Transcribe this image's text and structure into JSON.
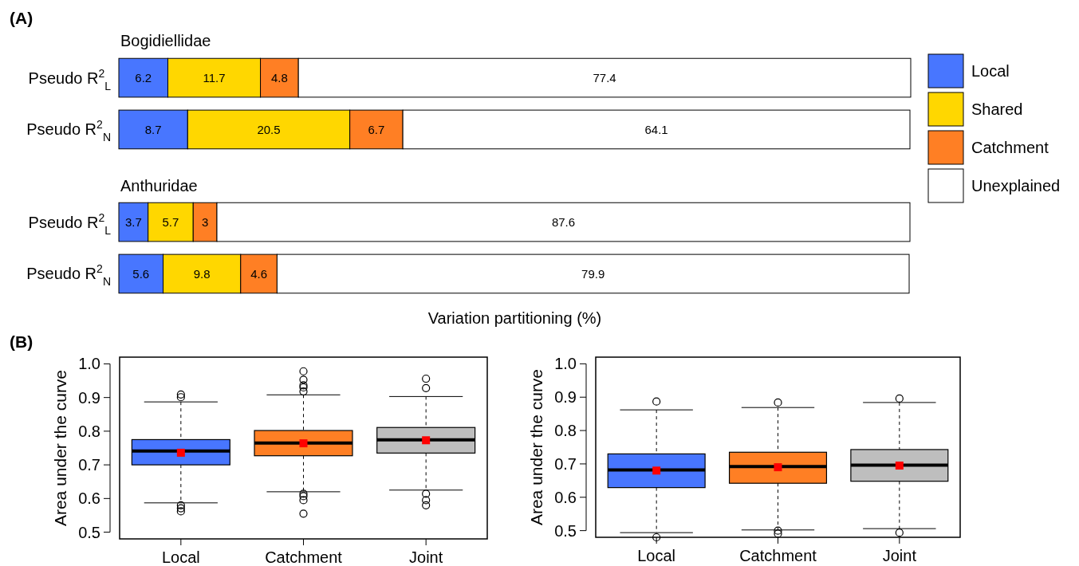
{
  "chart_data": [
    {
      "type": "bar",
      "title": "Bogidiellidae",
      "annotations": [
        "(A)"
      ],
      "orientation": "horizontal",
      "stacked": true,
      "data_labels": true,
      "legend": "right",
      "xlim": [
        0,
        100.1
      ],
      "categories": [
        "Pseudo R$^{2}$$_{L}$",
        "Pseudo R$^{2}$$_{N}$"
      ],
      "series": [
        {
          "name": "Local",
          "color": "#4876ff",
          "values": [
            6.2,
            8.7
          ]
        },
        {
          "name": "Shared",
          "color": "#ffd700",
          "values": [
            11.7,
            20.5
          ]
        },
        {
          "name": "Catchment",
          "color": "#ff7f24",
          "values": [
            4.8,
            6.7
          ]
        },
        {
          "name": "Unexplained",
          "color": "#ffffff",
          "values": [
            77.4,
            64.1
          ]
        }
      ]
    },
    {
      "type": "bar",
      "title": "Anthuridae",
      "xlabel": "Variation partitioning (%)",
      "orientation": "horizontal",
      "stacked": true,
      "data_labels": true,
      "xlim": [
        0,
        100.1
      ],
      "categories": [
        "Pseudo R$^{2}$$_{L}$",
        "Pseudo R$^{2}$$_{N}$"
      ],
      "series": [
        {
          "color": "#4876ff",
          "values": [
            3.7,
            5.6
          ]
        },
        {
          "color": "#ffd700",
          "values": [
            5.7,
            9.8
          ]
        },
        {
          "color": "#ff7f24",
          "values": [
            3,
            4.6
          ]
        },
        {
          "color": "#ffffff",
          "values": [
            87.6,
            79.9
          ]
        }
      ]
    },
    {
      "type": "box",
      "annotations": [
        "(B)"
      ],
      "ylabel": "Area under the curve",
      "categories": [
        "Local",
        "Catchment",
        "Joint"
      ],
      "colors": [
        "#4876ff",
        "#ff7f24",
        "#bebebe"
      ],
      "ylim": [
        0.48,
        1.02
      ],
      "yticks": [
        0.5,
        0.6,
        0.7,
        0.8,
        0.9,
        {
          "value": 1,
          "label": "1.0"
        }
      ],
      "boxes": [
        {
          "low": 0.587,
          "q1": 0.7,
          "median": 0.741,
          "q3": 0.775,
          "high": 0.887,
          "mean": 0.736,
          "outliers": [
            0.909,
            0.901,
            0.58,
            0.571,
            0.562
          ]
        },
        {
          "low": 0.62,
          "q1": 0.727,
          "median": 0.765,
          "q3": 0.802,
          "high": 0.908,
          "mean": 0.764,
          "outliers": [
            0.978,
            0.953,
            0.936,
            0.93,
            0.918,
            0.614,
            0.607,
            0.595,
            0.555
          ]
        },
        {
          "low": 0.625,
          "q1": 0.735,
          "median": 0.774,
          "q3": 0.811,
          "high": 0.903,
          "mean": 0.773,
          "outliers": [
            0.956,
            0.928,
            0.614,
            0.595,
            0.58
          ]
        }
      ]
    },
    {
      "type": "box",
      "ylabel": "Area under the curve",
      "categories": [
        "Local",
        "Catchment",
        "Joint"
      ],
      "colors": [
        "#4876ff",
        "#ff7f24",
        "#bebebe"
      ],
      "ylim": [
        0.48,
        1.02
      ],
      "yticks": [
        0.5,
        0.6,
        0.7,
        0.8,
        0.9,
        {
          "value": 1,
          "label": "1.0"
        }
      ],
      "boxes": [
        {
          "low": 0.494,
          "q1": 0.629,
          "median": 0.682,
          "q3": 0.73,
          "high": 0.862,
          "mean": 0.68,
          "outliers": [
            0.887,
            0.48
          ]
        },
        {
          "low": 0.502,
          "q1": 0.642,
          "median": 0.692,
          "q3": 0.735,
          "high": 0.869,
          "mean": 0.69,
          "outliers": [
            0.884,
            0.5,
            0.491
          ]
        },
        {
          "low": 0.506,
          "q1": 0.648,
          "median": 0.696,
          "q3": 0.743,
          "high": 0.884,
          "mean": 0.695,
          "outliers": [
            0.896,
            0.494
          ]
        }
      ]
    }
  ]
}
